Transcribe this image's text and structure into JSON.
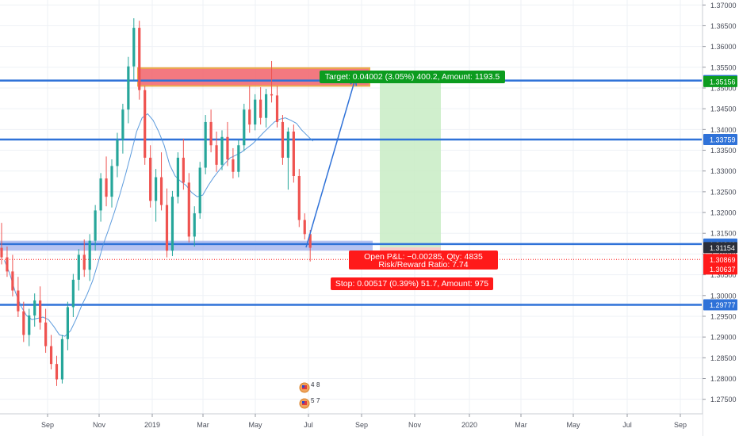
{
  "colors": {
    "up": "#26a69a",
    "down": "#ef5350",
    "level_line": "#2f72d8",
    "ma_line": "#4a90d9",
    "grid": "#eef1f6",
    "target_zone": "#c8ecc4",
    "stop_zone_fill": "#f8c3c4",
    "resistance_fill": "#f26b73",
    "resistance_border": "#e8a33b",
    "support_fill": "#a9b8ef",
    "badge_blue": "#2f72d8",
    "badge_green": "#0c9c1f",
    "badge_red": "#ff1a1a",
    "badge_dark": "#2a2e39"
  },
  "chart_data": {
    "type": "candlestick",
    "ylim": [
      1.2715,
      1.3712
    ],
    "x_ticks": [
      "Sep",
      "Nov",
      "2019",
      "Mar",
      "May",
      "Jul",
      "Sep",
      "Nov",
      "2020",
      "Mar",
      "May",
      "Jul",
      "Sep"
    ],
    "y_ticks": [
      "1.37000",
      "1.36500",
      "1.36000",
      "1.35500",
      "1.35000",
      "1.34500",
      "1.34000",
      "1.33500",
      "1.33000",
      "1.32500",
      "1.32000",
      "1.31500",
      "1.31000",
      "1.30500",
      "1.30000",
      "1.29500",
      "1.29000",
      "1.28500",
      "1.28000",
      "1.27500"
    ],
    "candles": [
      [
        1.3115,
        1.3175,
        1.3075,
        1.3092
      ],
      [
        1.3092,
        1.3118,
        1.3045,
        1.3058
      ],
      [
        1.3058,
        1.3098,
        1.2998,
        1.3012
      ],
      [
        1.3012,
        1.3045,
        1.2948,
        1.2962
      ],
      [
        1.2962,
        1.2985,
        1.2888,
        1.2905
      ],
      [
        1.2905,
        1.2968,
        1.2878,
        1.2952
      ],
      [
        1.2952,
        1.3005,
        1.2925,
        1.2988
      ],
      [
        1.2988,
        1.3022,
        1.2918,
        1.2935
      ],
      [
        1.2935,
        1.2968,
        1.2862,
        1.2878
      ],
      [
        1.2878,
        1.2905,
        1.2822,
        1.2835
      ],
      [
        1.2835,
        1.2855,
        1.2782,
        1.2798
      ],
      [
        1.2798,
        1.2905,
        1.2788,
        1.2895
      ],
      [
        1.2895,
        1.2985,
        1.2868,
        1.2972
      ],
      [
        1.2972,
        1.3052,
        1.2948,
        1.3038
      ],
      [
        1.3038,
        1.3112,
        1.3012,
        1.3098
      ],
      [
        1.3098,
        1.3135,
        1.3045,
        1.3062
      ],
      [
        1.3062,
        1.3148,
        1.3035,
        1.3132
      ],
      [
        1.3132,
        1.3218,
        1.3108,
        1.3205
      ],
      [
        1.3205,
        1.3295,
        1.3178,
        1.3282
      ],
      [
        1.3282,
        1.3335,
        1.3215,
        1.3238
      ],
      [
        1.3238,
        1.3328,
        1.3212,
        1.3312
      ],
      [
        1.3312,
        1.3392,
        1.3285,
        1.3375
      ],
      [
        1.3375,
        1.3462,
        1.3342,
        1.3448
      ],
      [
        1.3448,
        1.3575,
        1.3415,
        1.3552
      ],
      [
        1.3552,
        1.3668,
        1.3518,
        1.3645
      ],
      [
        1.3645,
        1.3662,
        1.3472,
        1.3495
      ],
      [
        1.3495,
        1.3505,
        1.3315,
        1.3332
      ],
      [
        1.3332,
        1.3362,
        1.3212,
        1.3228
      ],
      [
        1.3228,
        1.3305,
        1.3178,
        1.3285
      ],
      [
        1.3285,
        1.3345,
        1.3205,
        1.3218
      ],
      [
        1.3218,
        1.3258,
        1.3092,
        1.3108
      ],
      [
        1.3108,
        1.3252,
        1.3095,
        1.3238
      ],
      [
        1.3238,
        1.3345,
        1.3222,
        1.3332
      ],
      [
        1.3332,
        1.3378,
        1.3255,
        1.3272
      ],
      [
        1.3272,
        1.3295,
        1.3128,
        1.3142
      ],
      [
        1.3142,
        1.3215,
        1.3118,
        1.3198
      ],
      [
        1.3198,
        1.3322,
        1.3185,
        1.3308
      ],
      [
        1.3308,
        1.3435,
        1.3292,
        1.3418
      ],
      [
        1.3418,
        1.3448,
        1.3345,
        1.3362
      ],
      [
        1.3362,
        1.3395,
        1.3298,
        1.3315
      ],
      [
        1.3315,
        1.3398,
        1.3302,
        1.3382
      ],
      [
        1.3382,
        1.3418,
        1.3312,
        1.3328
      ],
      [
        1.3328,
        1.3355,
        1.3282,
        1.3298
      ],
      [
        1.3298,
        1.3375,
        1.3285,
        1.3362
      ],
      [
        1.3362,
        1.3462,
        1.3348,
        1.3448
      ],
      [
        1.3448,
        1.3505,
        1.3392,
        1.3412
      ],
      [
        1.3412,
        1.3485,
        1.3398,
        1.3472
      ],
      [
        1.3472,
        1.3502,
        1.3412,
        1.3428
      ],
      [
        1.3428,
        1.3498,
        1.3405,
        1.3485
      ],
      [
        1.3485,
        1.3565,
        1.3465,
        1.3482
      ],
      [
        1.3482,
        1.3505,
        1.3405,
        1.3418
      ],
      [
        1.3418,
        1.3435,
        1.3315,
        1.3332
      ],
      [
        1.3332,
        1.3405,
        1.3255,
        1.3395
      ],
      [
        1.3395,
        1.3412,
        1.3272,
        1.3288
      ],
      [
        1.3288,
        1.3305,
        1.3165,
        1.3182
      ],
      [
        1.3182,
        1.3198,
        1.3135,
        1.3148
      ],
      [
        1.3148,
        1.3158,
        1.3082,
        1.3115
      ]
    ],
    "series": [
      {
        "values": [
          1.3085,
          1.3052,
          1.3008,
          1.2975,
          1.2952,
          1.2942,
          1.2945,
          1.2948,
          1.2942,
          1.2925,
          1.2905,
          1.2902,
          1.2915,
          1.2942,
          1.2975,
          1.3002,
          1.3035,
          1.3078,
          1.3125,
          1.3162,
          1.3202,
          1.3245,
          1.3292,
          1.3342,
          1.3395,
          1.3428,
          1.3438,
          1.3422,
          1.3395,
          1.3362,
          1.3315,
          1.3288,
          1.3275,
          1.3265,
          1.3248,
          1.3238,
          1.3242,
          1.3265,
          1.3285,
          1.3302,
          1.3318,
          1.3332,
          1.3338,
          1.3345,
          1.3355,
          1.3365,
          1.3378,
          1.3392,
          1.3405,
          1.3418,
          1.3425,
          1.3428,
          1.3422,
          1.3415,
          1.3398,
          1.3385,
          1.3372
        ]
      }
    ],
    "levels": [
      {
        "price": 1.3518,
        "label": "1.35180"
      },
      {
        "price": 1.33759,
        "label": "1.33759"
      },
      {
        "price": 1.3124,
        "label": "1.31240"
      },
      {
        "price": 1.29777,
        "label": "1.29777"
      }
    ],
    "price_markers": [
      {
        "price": 1.35156,
        "label": "1.35156",
        "style": "green"
      },
      {
        "price": 1.31154,
        "label": "1.31154",
        "style": "dark"
      },
      {
        "price": 1.30869,
        "label": "1.30869",
        "style": "red"
      },
      {
        "price": 1.30637,
        "label": "1.30637",
        "style": "red"
      }
    ],
    "annotations": {
      "target_label": "Target: 0.04002 (3.05%) 400.2, Amount: 1193.5",
      "position_label_1": "Open P&L: −0.00285, Qty: 4835",
      "position_label_2": "Risk/Reward Ratio: 7.74",
      "stop_label": "Stop: 0.00517 (0.39%) 51.7, Amount: 975"
    },
    "resistance_zone": [
      1.3505,
      1.3548
    ],
    "support_zone": [
      1.3108,
      1.3132
    ],
    "target_zone": [
      1.3116,
      1.3518
    ],
    "stop_zone": [
      1.3064,
      1.3116
    ],
    "event_badges": [
      "4",
      "8",
      "5",
      "7"
    ]
  }
}
